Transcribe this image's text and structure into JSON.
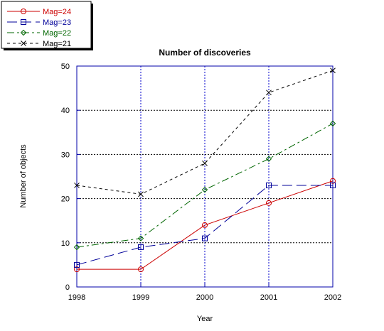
{
  "chart_data": {
    "type": "line",
    "title": "Number of discoveries",
    "xlabel": "Year",
    "ylabel": "Number of objects",
    "x": [
      1998,
      1999,
      2000,
      2001,
      2002
    ],
    "x_tick_labels": [
      "1998",
      "1999",
      "2000",
      "2001",
      "2002"
    ],
    "ylim": [
      0,
      50
    ],
    "y_ticks": [
      0,
      10,
      20,
      30,
      40,
      50
    ],
    "y_tick_labels": [
      "0",
      "10",
      "20",
      "30",
      "40",
      "50"
    ],
    "grid": true,
    "legend_position": "top-left",
    "series": [
      {
        "name": "Mag=24",
        "values": [
          4,
          4,
          14,
          19,
          24
        ],
        "color": "#cc0000",
        "marker": "circle",
        "dash": ""
      },
      {
        "name": "Mag=23",
        "values": [
          5,
          9,
          11,
          23,
          23
        ],
        "color": "#000099",
        "marker": "square",
        "dash": "14,6"
      },
      {
        "name": "Mag=22",
        "values": [
          9,
          11,
          22,
          29,
          37
        ],
        "color": "#006600",
        "marker": "diamond",
        "dash": "10,4,3,4"
      },
      {
        "name": "Mag=21",
        "values": [
          23,
          21,
          28,
          44,
          49
        ],
        "color": "#000000",
        "marker": "x",
        "dash": "4,4"
      }
    ],
    "colors": {
      "axis": "#0000aa",
      "grid": "#0000cc",
      "background": "#ffffff"
    }
  }
}
